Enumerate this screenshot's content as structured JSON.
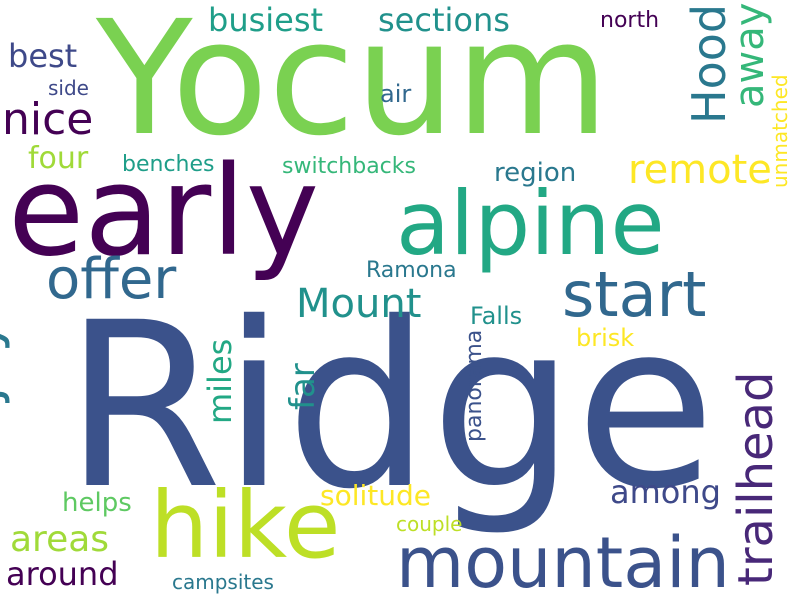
{
  "words": [
    {
      "text": "Yocum",
      "color": "#7ad151"
    },
    {
      "text": "Ridge",
      "color": "#3b528b"
    },
    {
      "text": "early",
      "color": "#440154"
    },
    {
      "text": "alpine",
      "color": "#22a884"
    },
    {
      "text": "hike",
      "color": "#bddf26"
    },
    {
      "text": "start",
      "color": "#31688e"
    },
    {
      "text": "mountain",
      "color": "#3b528b"
    },
    {
      "text": "offer",
      "color": "#31688e"
    },
    {
      "text": "enjoy",
      "color": "#2a788e"
    },
    {
      "text": "Mount",
      "color": "#21918c"
    },
    {
      "text": "remote",
      "color": "#fde725"
    },
    {
      "text": "trailhead",
      "color": "#482878"
    },
    {
      "text": "Hood",
      "color": "#2a788e"
    },
    {
      "text": "away",
      "color": "#35b779"
    },
    {
      "text": "nice",
      "color": "#440154"
    },
    {
      "text": "best",
      "color": "#3e4989"
    },
    {
      "text": "busiest",
      "color": "#1f9e89"
    },
    {
      "text": "sections",
      "color": "#21918c"
    },
    {
      "text": "north",
      "color": "#440154"
    },
    {
      "text": "unmatched",
      "color": "#fde725"
    },
    {
      "text": "four",
      "color": "#a0da39"
    },
    {
      "text": "benches",
      "color": "#1f9e89"
    },
    {
      "text": "switchbacks",
      "color": "#35b779"
    },
    {
      "text": "region",
      "color": "#2a788e"
    },
    {
      "text": "side",
      "color": "#3e4989"
    },
    {
      "text": "air",
      "color": "#31688e"
    },
    {
      "text": "Ramona",
      "color": "#2a788e"
    },
    {
      "text": "Falls",
      "color": "#21918c"
    },
    {
      "text": "far",
      "color": "#21918c"
    },
    {
      "text": "miles",
      "color": "#22a884"
    },
    {
      "text": "panorama",
      "color": "#3b528b"
    },
    {
      "text": "brisk",
      "color": "#fde725"
    },
    {
      "text": "among",
      "color": "#3e4989"
    },
    {
      "text": "solitude",
      "color": "#fde725"
    },
    {
      "text": "areas",
      "color": "#a0da39"
    },
    {
      "text": "helps",
      "color": "#5ec962"
    },
    {
      "text": "couple",
      "color": "#bddf26"
    },
    {
      "text": "around",
      "color": "#440154"
    },
    {
      "text": "campsites",
      "color": "#2a788e"
    }
  ]
}
